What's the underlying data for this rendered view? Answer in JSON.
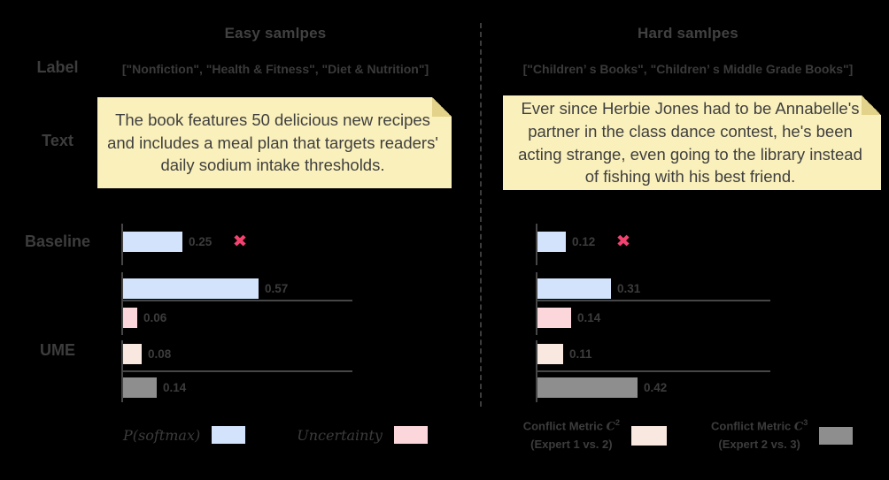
{
  "colors": {
    "background": "#000000",
    "text": "#3d3d3d",
    "axis": "#464646",
    "note_bg": "#FAF0BB",
    "note_fold": "#E3D28A",
    "bar_blue": "#D3E3FB",
    "bar_pink": "#FBD7DB",
    "bar_peach": "#F8E8DF",
    "bar_gray": "#8E8E8E",
    "x_mark": "#F4426E"
  },
  "row_headers": {
    "label": "Label",
    "text": "Text",
    "baseline": "Baseline",
    "ume": "UME"
  },
  "columns": [
    {
      "title": "Easy samlpes",
      "label_value": "[\"Nonfiction\", \"Health & Fitness\", \"Diet & Nutrition\"]",
      "note_text": "The book features 50 delicious new recipes and includes a meal plan that targets readers' daily sodium intake thresholds."
    },
    {
      "title": "Hard samlpes",
      "label_value": "[\"Children’ s Books\", \"Children’ s Middle Grade Books\"]",
      "note_text": "Ever since Herbie Jones had to be Annabelle's partner in the class dance contest, he's been acting strange, even going to the library instead of fishing with his best friend."
    }
  ],
  "chart_data": [
    {
      "type": "bar",
      "panel": "Easy samlpes",
      "section": "Baseline",
      "orientation": "horizontal",
      "xlim": [
        0,
        1
      ],
      "series": [
        {
          "name": "P(softmax)",
          "value": 0.25,
          "color": "blue",
          "rejected": true
        }
      ]
    },
    {
      "type": "bar",
      "panel": "Easy samlpes",
      "section": "UME",
      "orientation": "horizontal",
      "xlim": [
        0,
        1
      ],
      "series": [
        {
          "name": "P(softmax)",
          "value": 0.57,
          "color": "blue"
        },
        {
          "name": "Uncertainty",
          "value": 0.06,
          "color": "pink"
        },
        {
          "name": "Conflict Metric C² (Expert 1 vs. 2)",
          "value": 0.08,
          "color": "peach"
        },
        {
          "name": "Conflict Metric C³ (Expert 2 vs. 3)",
          "value": 0.14,
          "color": "gray"
        }
      ]
    },
    {
      "type": "bar",
      "panel": "Hard samlpes",
      "section": "Baseline",
      "orientation": "horizontal",
      "xlim": [
        0,
        1
      ],
      "series": [
        {
          "name": "P(softmax)",
          "value": 0.12,
          "color": "blue",
          "rejected": true
        }
      ]
    },
    {
      "type": "bar",
      "panel": "Hard samlpes",
      "section": "UME",
      "orientation": "horizontal",
      "xlim": [
        0,
        1
      ],
      "series": [
        {
          "name": "P(softmax)",
          "value": 0.31,
          "color": "blue"
        },
        {
          "name": "Uncertainty",
          "value": 0.14,
          "color": "pink"
        },
        {
          "name": "Conflict Metric C² (Expert 1 vs. 2)",
          "value": 0.11,
          "color": "peach"
        },
        {
          "name": "Conflict Metric C³ (Expert 2 vs. 3)",
          "value": 0.42,
          "color": "gray"
        }
      ]
    }
  ],
  "legend": {
    "left": [
      {
        "label": "P(softmax)",
        "color": "blue"
      },
      {
        "label": "Uncertainty",
        "color": "pink"
      }
    ],
    "right": [
      {
        "line1_prefix": "Conflict Metric ",
        "symbol": "C",
        "exponent": "2",
        "line2": "(Expert 1 vs. 2)",
        "color": "peach"
      },
      {
        "line1_prefix": "Conflict Metric ",
        "symbol": "C",
        "exponent": "3",
        "line2": "(Expert 2 vs. 3)",
        "color": "gray"
      }
    ]
  },
  "x_mark_glyph": "✖"
}
